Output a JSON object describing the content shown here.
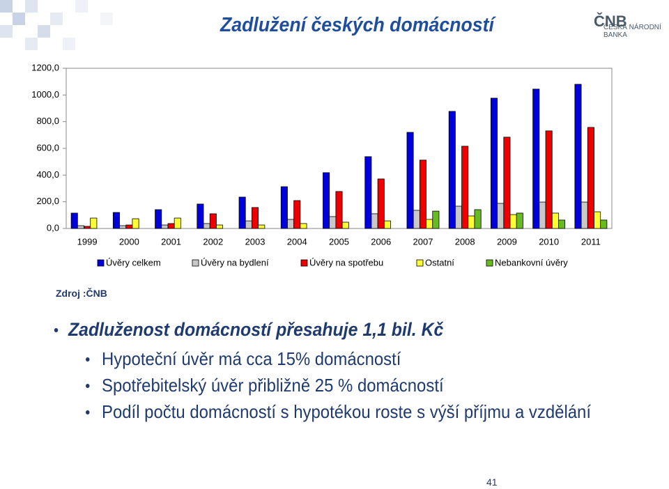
{
  "header": {
    "title": "Zadlužení českých domácností",
    "logo": "ČNB",
    "logo_text": "ČESKÁ NÁRODNÍ BANKA"
  },
  "chart_data": {
    "type": "bar",
    "categories": [
      "1999",
      "2000",
      "2001",
      "2002",
      "2003",
      "2004",
      "2005",
      "2006",
      "2007",
      "2008",
      "2009",
      "2010",
      "2011"
    ],
    "series": [
      {
        "name": "Úvěry celkem",
        "color": "#0000dd",
        "values": [
          115,
          120,
          141,
          183,
          235,
          313,
          418,
          538,
          720,
          877,
          976,
          1044,
          1080
        ]
      },
      {
        "name": "Úvěry na bydlení",
        "color": "#c8c8c8",
        "values": [
          21,
          21,
          26,
          37,
          57,
          68,
          89,
          110,
          136,
          167,
          188,
          198,
          198
        ]
      },
      {
        "name": "Úvěry na spotřebu",
        "color": "#ee0000",
        "values": [
          16,
          26,
          37,
          110,
          157,
          209,
          277,
          371,
          512,
          616,
          684,
          731,
          757
        ]
      },
      {
        "name": "Ostatní",
        "color": "#ffff33",
        "values": [
          78,
          73,
          78,
          26,
          26,
          37,
          47,
          57,
          68,
          94,
          104,
          115,
          125
        ]
      },
      {
        "name": "Nebankovní úvěry",
        "color": "#66bb22",
        "values": [
          null,
          null,
          null,
          null,
          null,
          null,
          null,
          null,
          130,
          141,
          115,
          63,
          63
        ]
      }
    ],
    "ylim": [
      0,
      1200
    ],
    "yticks": [
      {
        "value": 0,
        "label": "0,0"
      },
      {
        "value": 200,
        "label": "200,0"
      },
      {
        "value": 400,
        "label": "400,0"
      },
      {
        "value": 600,
        "label": "600,0"
      },
      {
        "value": 800,
        "label": "800,0"
      },
      {
        "value": 1000,
        "label": "1000,0"
      },
      {
        "value": 1200,
        "label": "1200,0"
      }
    ],
    "legend": "bottom"
  },
  "source": "Zdroj :ČNB",
  "bullets": [
    {
      "text": "Zadluženost domácností přesahuje 1,1 bil. Kč",
      "level": 1
    },
    {
      "text": "Hypoteční úvěr má cca 15% domácností",
      "level": 2
    },
    {
      "text": "Spotřebitelský úvěr přibližně 25 % domácností",
      "level": 2
    },
    {
      "text": "Podíl počtu domácností s hypotékou roste s výší příjmu a vzdělání",
      "level": 2
    }
  ],
  "page_number": "41"
}
